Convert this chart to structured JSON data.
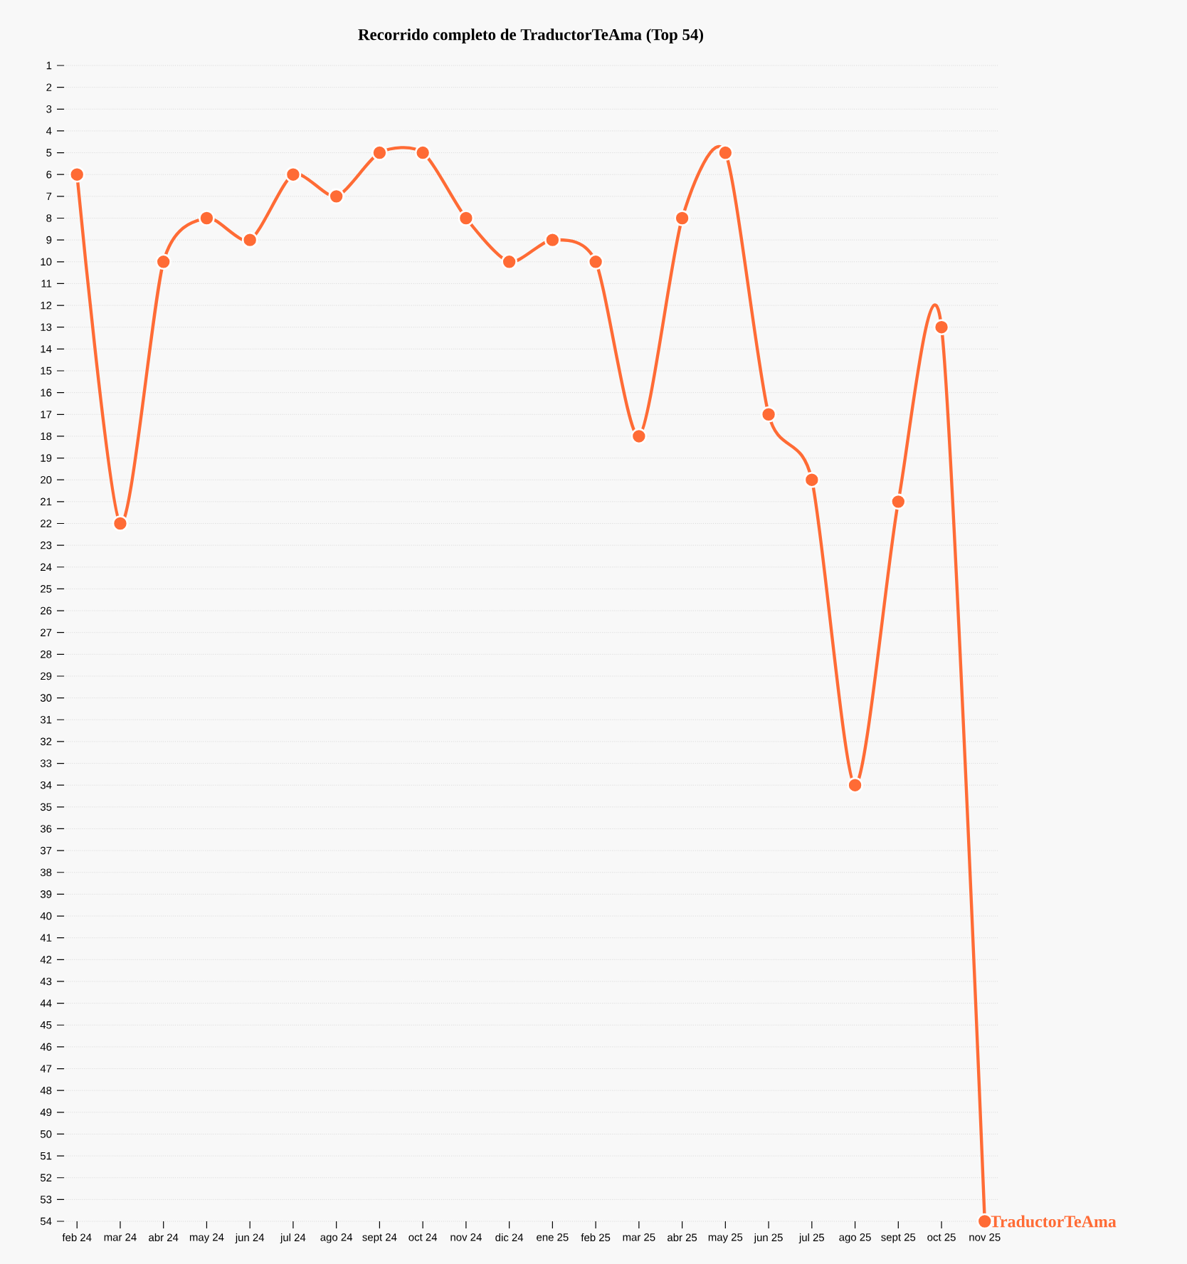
{
  "chart_data": {
    "type": "line",
    "title": "Recorrido completo de TraductorTeAma (Top 54)",
    "categories": [
      "feb 24",
      "mar 24",
      "abr 24",
      "may 24",
      "jun 24",
      "jul 24",
      "ago 24",
      "sept 24",
      "oct 24",
      "nov 24",
      "dic 24",
      "ene 25",
      "feb 25",
      "mar 25",
      "abr 25",
      "may 25",
      "jun 25",
      "jul 25",
      "ago 25",
      "sept 25",
      "oct 25",
      "nov 25"
    ],
    "series": [
      {
        "name": "TraductorTeAma",
        "color": "#ff6b35",
        "values": [
          6,
          22,
          10,
          8,
          9,
          6,
          7,
          5,
          5,
          8,
          10,
          9,
          10,
          18,
          8,
          5,
          17,
          20,
          34,
          21,
          13,
          54
        ]
      }
    ],
    "ylim": [
      54,
      1
    ],
    "yticks": [
      1,
      2,
      3,
      4,
      5,
      6,
      7,
      8,
      9,
      10,
      11,
      12,
      13,
      14,
      15,
      16,
      17,
      18,
      19,
      20,
      21,
      22,
      23,
      24,
      25,
      26,
      27,
      28,
      29,
      30,
      31,
      32,
      33,
      34,
      35,
      36,
      37,
      38,
      39,
      40,
      41,
      42,
      43,
      44,
      45,
      46,
      47,
      48,
      49,
      50,
      51,
      52,
      53,
      54
    ],
    "grid": "y",
    "marker": "circle",
    "line_style": "solid",
    "legend": false
  }
}
